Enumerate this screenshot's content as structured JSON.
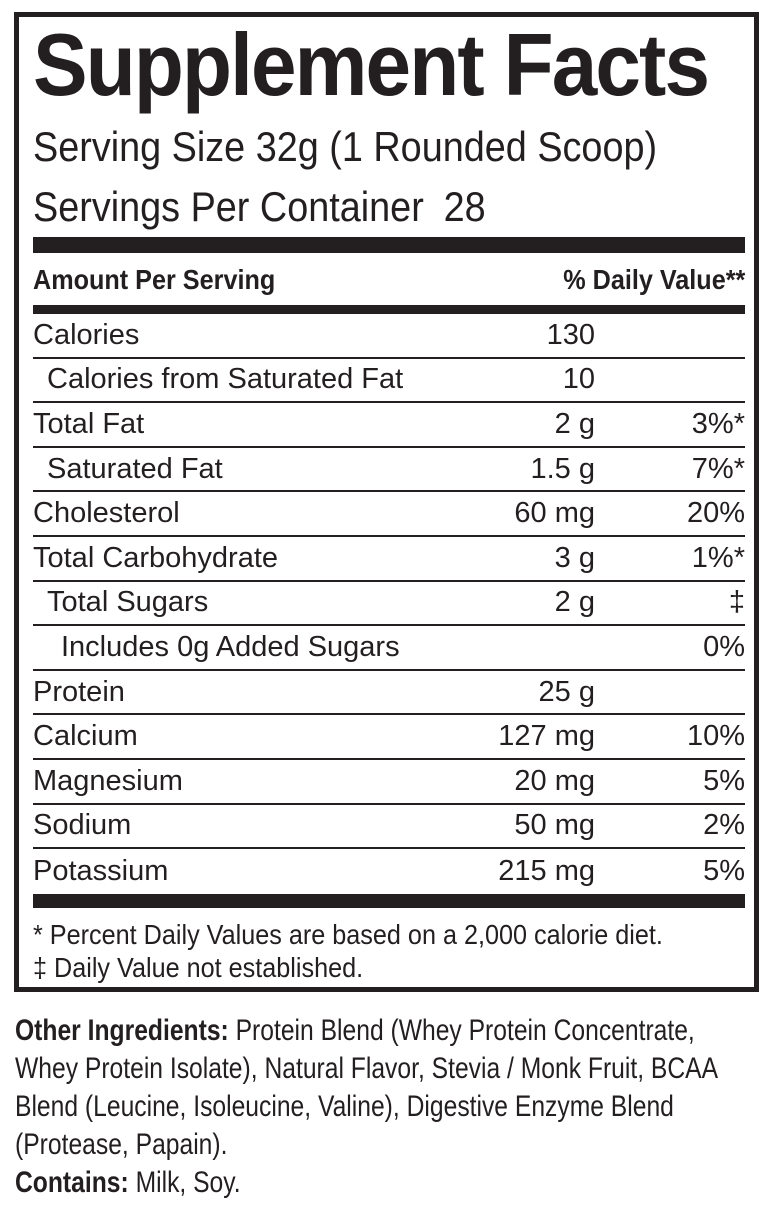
{
  "label": {
    "title": "Supplement Facts",
    "serving_size": "Serving Size 32g (1 Rounded Scoop)",
    "servings_per_container_label": "Servings Per Container",
    "servings_per_container_value": "28",
    "columns": {
      "left": "Amount Per Serving",
      "right": "% Daily Value**"
    },
    "rows": [
      {
        "name": "Calories",
        "amount": "130",
        "dv": "",
        "indent": 0
      },
      {
        "name": "Calories from Saturated Fat",
        "amount": "10",
        "dv": "",
        "indent": 1
      },
      {
        "name": "Total Fat",
        "amount": "2 g",
        "dv": "3%*",
        "indent": 0
      },
      {
        "name": "Saturated Fat",
        "amount": "1.5 g",
        "dv": "7%*",
        "indent": 1
      },
      {
        "name": "Cholesterol",
        "amount": "60 mg",
        "dv": "20%",
        "indent": 0
      },
      {
        "name": "Total Carbohydrate",
        "amount": "3 g",
        "dv": "1%*",
        "indent": 0
      },
      {
        "name": "Total Sugars",
        "amount": "2 g",
        "dv": "‡",
        "indent": 1
      },
      {
        "name": "Includes 0g Added Sugars",
        "amount": "",
        "dv": "0%",
        "indent": 2
      },
      {
        "name": "Protein",
        "amount": "25 g",
        "dv": "",
        "indent": 0
      },
      {
        "name": "Calcium",
        "amount": "127 mg",
        "dv": "10%",
        "indent": 0
      },
      {
        "name": "Magnesium",
        "amount": "20 mg",
        "dv": "5%",
        "indent": 0
      },
      {
        "name": "Sodium",
        "amount": "50 mg",
        "dv": "2%",
        "indent": 0
      },
      {
        "name": "Potassium",
        "amount": "215 mg",
        "dv": "5%",
        "indent": 0
      }
    ],
    "footnotes": [
      "* Percent Daily Values are based on a 2,000 calorie diet.",
      "‡ Daily Value not established."
    ]
  },
  "other_ingredients": {
    "label": "Other Ingredients:",
    "text": "Protein Blend (Whey Protein Concentrate, Whey Protein Isolate), Natural Flavor, Stevia / Monk Fruit, BCAA Blend (Leucine, Isoleucine, Valine), Digestive Enzyme Blend (Protease, Papain)."
  },
  "contains": {
    "label": "Contains:",
    "text": "Milk, Soy."
  },
  "colors": {
    "ink": "#231f20",
    "background": "#ffffff"
  }
}
